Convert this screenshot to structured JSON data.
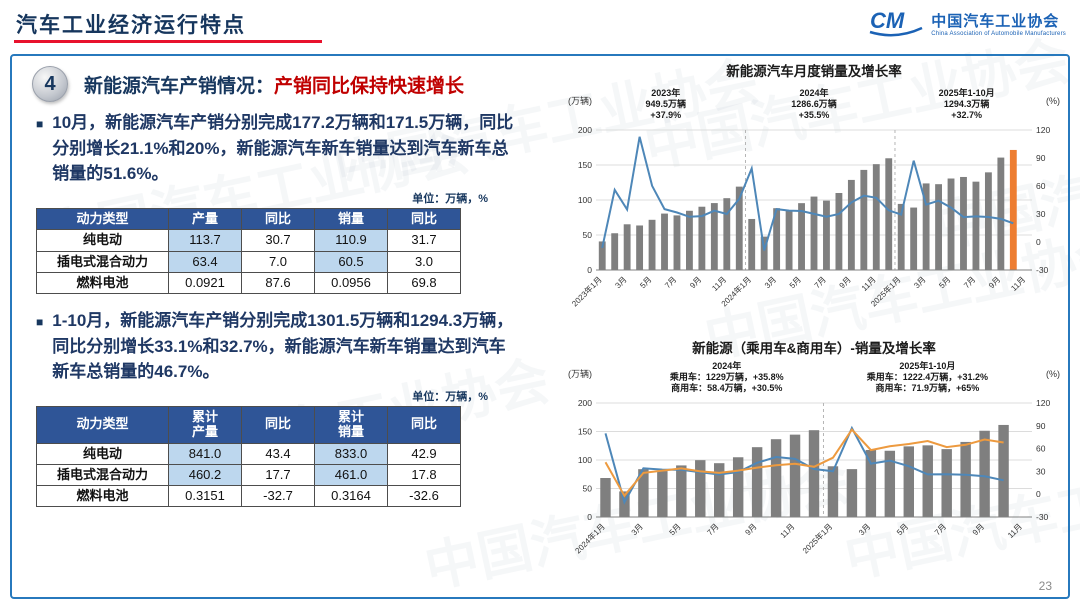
{
  "page": {
    "title": "汽车工业经济运行特点",
    "page_number": "23"
  },
  "logo": {
    "mark": "CM",
    "name_cn": "中国汽车工业协会",
    "name_en": "China Association of Automobile Manufacturers"
  },
  "watermark": {
    "text": "中国汽车工业协会"
  },
  "section": {
    "badge": "4",
    "title": "新能源汽车产销情况：",
    "subtitle": "产销同比保持快速增长"
  },
  "bullets": {
    "marker": "■",
    "b1": "10月，新能源汽车产销分别完成177.2万辆和171.5万辆，同比分别增长21.1%和20%，新能源汽车新车销量达到汽车新车总销量的51.6%。",
    "unit1": "单位：万辆，%",
    "b2": "1-10月，新能源汽车产销分别完成1301.5万辆和1294.3万辆，同比分别增长33.1%和32.7%，新能源汽车新车销量达到汽车新车总销量的46.7%。",
    "unit2": "单位：万辆，%"
  },
  "tables": [
    {
      "headers": [
        "动力类型",
        "产量",
        "同比",
        "销量",
        "同比"
      ],
      "rows": [
        [
          "纯电动",
          "113.7",
          "30.7",
          "110.9",
          "31.7"
        ],
        [
          "插电式混合动力",
          "63.4",
          "7.0",
          "60.5",
          "3.0"
        ],
        [
          "燃料电池",
          "0.0921",
          "87.6",
          "0.0956",
          "69.8"
        ]
      ],
      "highlight_rows": [
        0,
        1
      ],
      "highlight_cols": [
        1,
        3
      ]
    },
    {
      "headers": [
        "动力类型",
        "累计\n产量",
        "同比",
        "累计\n销量",
        "同比"
      ],
      "rows": [
        [
          "纯电动",
          "841.0",
          "43.4",
          "833.0",
          "42.9"
        ],
        [
          "插电式混合动力",
          "460.2",
          "17.7",
          "461.0",
          "17.8"
        ],
        [
          "燃料电池",
          "0.3151",
          "-32.7",
          "0.3164",
          "-32.6"
        ]
      ],
      "highlight_rows": [
        0,
        1
      ],
      "highlight_cols": [
        1,
        3
      ]
    }
  ],
  "chart_data": [
    {
      "type": "bar",
      "title": "新能源汽车月度销量及增长率",
      "left_axis_label": "(万辆)",
      "right_axis_label": "(%)",
      "left_range": [
        0,
        200
      ],
      "right_range": [
        -30,
        120
      ],
      "left_ticks": [
        0,
        50,
        100,
        150,
        200
      ],
      "right_ticks": [
        -30,
        0,
        30,
        60,
        90,
        120
      ],
      "x_tick_labels": [
        "2023年1月",
        "3月",
        "5月",
        "7月",
        "9月",
        "11月",
        "2024年1月",
        "3月",
        "5月",
        "7月",
        "9月",
        "11月",
        "2025年1月",
        "3月",
        "5月",
        "7月",
        "9月",
        "11月"
      ],
      "separators": [
        12,
        24
      ],
      "annotation_x": [
        0.16,
        0.5,
        0.85
      ],
      "annotations": [
        {
          "lines": [
            "2023年",
            "949.5万辆",
            "+37.9%"
          ]
        },
        {
          "lines": [
            "2024年",
            "1286.6万辆",
            "+35.5%"
          ]
        },
        {
          "lines": [
            "2025年1-10月",
            "1294.3万辆",
            "+32.7%"
          ]
        }
      ],
      "bars": {
        "name": "月度销量",
        "color": "#7F7F7F",
        "highlight_last": true,
        "highlight_color": "#ED7D31",
        "values": [
          40.8,
          52.5,
          65.3,
          63.6,
          71.7,
          80.6,
          78.0,
          84.6,
          90.4,
          95.6,
          102.6,
          119.1,
          72.9,
          47.7,
          88.3,
          85.0,
          95.5,
          104.9,
          99.1,
          110.0,
          128.7,
          143.0,
          151.2,
          159.6,
          94.4,
          89.2,
          123.7,
          122.6,
          130.7,
          132.9,
          126.2,
          139.5,
          160.6,
          171.5
        ]
      },
      "lines": [
        {
          "name": "同比增长率",
          "key": "yoy-growth-line",
          "color": "#4E87B8",
          "values": [
            -6.3,
            55.9,
            34.8,
            112.7,
            60.2,
            35.2,
            31.6,
            27.0,
            27.7,
            33.5,
            30.0,
            46.4,
            78.8,
            -9.1,
            35.2,
            33.6,
            33.2,
            30.1,
            27.1,
            30.0,
            42.4,
            49.6,
            47.4,
            34.0,
            29.4,
            87.1,
            40.1,
            44.2,
            36.9,
            26.7,
            27.4,
            26.8,
            24.8,
            20.0
          ]
        }
      ]
    },
    {
      "type": "bar",
      "title": "新能源（乘用车&商用车）-销量及增长率",
      "left_axis_label": "(万辆)",
      "right_axis_label": "(%)",
      "left_range": [
        0,
        200
      ],
      "right_range": [
        -30,
        120
      ],
      "left_ticks": [
        0,
        50,
        100,
        150,
        200
      ],
      "right_ticks": [
        -30,
        0,
        30,
        60,
        90,
        120
      ],
      "x_tick_labels": [
        "2024年1月",
        "3月",
        "5月",
        "7月",
        "9月",
        "11月",
        "2025年1月",
        "3月",
        "5月",
        "7月",
        "9月",
        "11月"
      ],
      "separators": [
        12
      ],
      "annotation_x": [
        0.3,
        0.76
      ],
      "annotations": [
        {
          "lines": [
            "2024年",
            "乘用车：1229万辆，+35.8%",
            "商用车：58.4万辆，+30.5%"
          ]
        },
        {
          "lines": [
            "2025年1-10月",
            "乘用车：1222.4万辆，+31.2%",
            "商用车：71.9万辆，+65%"
          ]
        }
      ],
      "bars": {
        "name": "乘用车销量",
        "color": "#7F7F7F",
        "highlight_last": false,
        "highlight_color": "#ED7D31",
        "values": [
          68.4,
          44.9,
          83.9,
          80.6,
          90.5,
          99.7,
          94.4,
          104.8,
          122.5,
          136.5,
          144.5,
          152.3,
          89.0,
          84.0,
          117.6,
          116.2,
          123.9,
          125.7,
          119.1,
          131.7,
          151.3,
          161.5
        ]
      },
      "lines": [
        {
          "name": "乘用车同比",
          "key": "passenger-growth-line",
          "color": "#4E87B8",
          "values": [
            80.0,
            -10.5,
            34.1,
            32.4,
            32.1,
            29.0,
            25.9,
            29.2,
            41.3,
            48.9,
            46.5,
            33.1,
            30.1,
            87.1,
            40.2,
            44.2,
            36.9,
            26.1,
            26.2,
            25.7,
            23.5,
            18.3
          ]
        },
        {
          "name": "商用车同比",
          "key": "commercial-growth-line",
          "color": "#ED9A3F",
          "values": [
            42.0,
            -2.0,
            28.0,
            31.0,
            34.0,
            30.0,
            28.0,
            31.0,
            35.0,
            38.0,
            40.0,
            36.0,
            48.0,
            85.0,
            58.0,
            63.0,
            66.0,
            70.0,
            62.0,
            65.0,
            72.0,
            68.0
          ]
        }
      ]
    }
  ]
}
